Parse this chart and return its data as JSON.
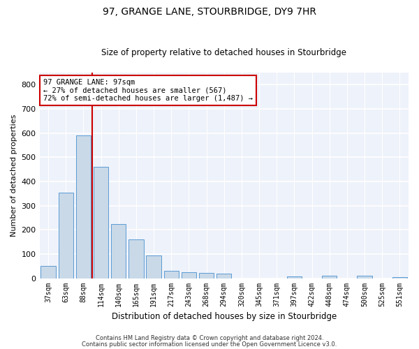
{
  "title1": "97, GRANGE LANE, STOURBRIDGE, DY9 7HR",
  "title2": "Size of property relative to detached houses in Stourbridge",
  "xlabel": "Distribution of detached houses by size in Stourbridge",
  "ylabel": "Number of detached properties",
  "categories": [
    "37sqm",
    "63sqm",
    "88sqm",
    "114sqm",
    "140sqm",
    "165sqm",
    "191sqm",
    "217sqm",
    "243sqm",
    "268sqm",
    "294sqm",
    "320sqm",
    "345sqm",
    "371sqm",
    "397sqm",
    "422sqm",
    "448sqm",
    "474sqm",
    "500sqm",
    "525sqm",
    "551sqm"
  ],
  "values": [
    50,
    355,
    590,
    460,
    225,
    160,
    95,
    30,
    25,
    22,
    18,
    0,
    0,
    0,
    8,
    0,
    10,
    0,
    10,
    0,
    5
  ],
  "bar_color": "#c9d9e8",
  "bar_edge_color": "#5b9bd5",
  "background_color": "#eef2fa",
  "grid_color": "#ffffff",
  "vline_color": "#cc0000",
  "vline_x": 2.5,
  "annotation_line1": "97 GRANGE LANE: 97sqm",
  "annotation_line2": "← 27% of detached houses are smaller (567)",
  "annotation_line3": "72% of semi-detached houses are larger (1,487) →",
  "annotation_box_color": "#ffffff",
  "annotation_box_edge": "#cc0000",
  "footer1": "Contains HM Land Registry data © Crown copyright and database right 2024.",
  "footer2": "Contains public sector information licensed under the Open Government Licence v3.0.",
  "ylim": [
    0,
    850
  ],
  "yticks": [
    0,
    100,
    200,
    300,
    400,
    500,
    600,
    700,
    800
  ]
}
